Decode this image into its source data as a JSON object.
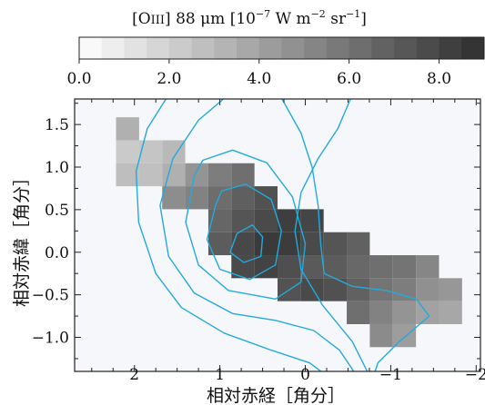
{
  "chart_data": {
    "type": "heatmap",
    "colorbar": {
      "title": "[OIII] 88 μm [10^-7 W m^-2 sr^-1]",
      "title_parts": {
        "prefix": "[O",
        "ion": "III",
        "line": "] 88 μm [10",
        "exp1": "−7",
        "units": " W m",
        "exp2": "−2",
        "units2": " sr",
        "exp3": "−1",
        "close": "]"
      },
      "range": [
        0.0,
        9.0
      ],
      "n_bins": 18,
      "ticks": [
        0.0,
        2.0,
        4.0,
        6.0,
        8.0
      ],
      "tick_labels": [
        "0.0",
        "2.0",
        "4.0",
        "6.0",
        "8.0"
      ],
      "color_low": "#ffffff",
      "color_high": "#2e2e2e"
    },
    "xlabel": "相対赤経［角分］",
    "ylabel": "相対赤緯［角分］",
    "xlim": [
      2.7,
      -2.05
    ],
    "ylim": [
      -1.4,
      1.8
    ],
    "x_ticks": [
      2,
      1,
      0,
      -1,
      -2
    ],
    "x_tick_labels": [
      "2",
      "1",
      "0",
      "−1",
      "−2"
    ],
    "y_ticks": [
      1.5,
      1.0,
      0.5,
      0.0,
      -0.5,
      -1.0
    ],
    "y_tick_labels": [
      "1.5",
      "1.0",
      "0.5",
      "0.0",
      "−0.5",
      "−1.0"
    ],
    "pixel_size_arcmin": 0.27,
    "pixels": [
      {
        "x": 2.08,
        "y": 1.45,
        "v": 3.4
      },
      {
        "x": 2.08,
        "y": 1.18,
        "v": 2.3
      },
      {
        "x": 1.81,
        "y": 1.18,
        "v": 2.5
      },
      {
        "x": 2.08,
        "y": 0.91,
        "v": 2.8
      },
      {
        "x": 1.81,
        "y": 0.91,
        "v": 2.7
      },
      {
        "x": 1.54,
        "y": 0.91,
        "v": 3.4
      },
      {
        "x": 1.27,
        "y": 0.91,
        "v": 4.6
      },
      {
        "x": 1.54,
        "y": 1.18,
        "v": 3.0
      },
      {
        "x": 1.54,
        "y": 0.64,
        "v": 4.9
      },
      {
        "x": 1.27,
        "y": 0.64,
        "v": 5.4
      },
      {
        "x": 1.0,
        "y": 0.91,
        "v": 5.6
      },
      {
        "x": 1.0,
        "y": 0.64,
        "v": 6.3
      },
      {
        "x": 0.73,
        "y": 0.91,
        "v": 6.2
      },
      {
        "x": 0.73,
        "y": 0.64,
        "v": 6.9
      },
      {
        "x": 1.0,
        "y": 0.37,
        "v": 6.6
      },
      {
        "x": 0.73,
        "y": 0.37,
        "v": 7.3
      },
      {
        "x": 0.46,
        "y": 0.64,
        "v": 7.5
      },
      {
        "x": 0.46,
        "y": 0.37,
        "v": 7.8
      },
      {
        "x": 1.0,
        "y": 0.1,
        "v": 7.0
      },
      {
        "x": 0.73,
        "y": 0.1,
        "v": 7.9
      },
      {
        "x": 0.46,
        "y": 0.1,
        "v": 8.5
      },
      {
        "x": 0.19,
        "y": 0.37,
        "v": 8.3
      },
      {
        "x": 0.19,
        "y": 0.1,
        "v": 8.4
      },
      {
        "x": -0.08,
        "y": 0.37,
        "v": 8.0
      },
      {
        "x": -0.08,
        "y": 0.1,
        "v": 7.8
      },
      {
        "x": 0.73,
        "y": -0.17,
        "v": 7.8
      },
      {
        "x": 0.46,
        "y": -0.17,
        "v": 8.1
      },
      {
        "x": 0.19,
        "y": -0.17,
        "v": 7.6
      },
      {
        "x": -0.08,
        "y": -0.17,
        "v": 7.1
      },
      {
        "x": 0.19,
        "y": -0.44,
        "v": 7.4
      },
      {
        "x": -0.08,
        "y": -0.44,
        "v": 7.8
      },
      {
        "x": -0.35,
        "y": 0.1,
        "v": 7.3
      },
      {
        "x": -0.35,
        "y": -0.17,
        "v": 7.0
      },
      {
        "x": -0.35,
        "y": -0.44,
        "v": 7.5
      },
      {
        "x": -0.62,
        "y": 0.1,
        "v": 6.8
      },
      {
        "x": -0.62,
        "y": -0.17,
        "v": 6.5
      },
      {
        "x": -0.62,
        "y": -0.44,
        "v": 6.8
      },
      {
        "x": -0.89,
        "y": -0.17,
        "v": 6.2
      },
      {
        "x": -0.89,
        "y": -0.44,
        "v": 6.0
      },
      {
        "x": -0.62,
        "y": -0.71,
        "v": 6.2
      },
      {
        "x": -0.89,
        "y": -0.71,
        "v": 5.4
      },
      {
        "x": -1.16,
        "y": -0.17,
        "v": 6.0
      },
      {
        "x": -1.16,
        "y": -0.44,
        "v": 5.6
      },
      {
        "x": -1.16,
        "y": -0.71,
        "v": 4.6
      },
      {
        "x": -1.43,
        "y": -0.17,
        "v": 5.2
      },
      {
        "x": -1.43,
        "y": -0.44,
        "v": 4.8
      },
      {
        "x": -1.43,
        "y": -0.71,
        "v": 4.0
      },
      {
        "x": -1.7,
        "y": -0.44,
        "v": 4.5
      },
      {
        "x": -1.7,
        "y": -0.71,
        "v": 3.8
      },
      {
        "x": -0.89,
        "y": -0.98,
        "v": 5.0
      },
      {
        "x": -1.16,
        "y": -0.98,
        "v": 4.2
      }
    ],
    "contour_color": "#22aadd",
    "contours": [
      {
        "level": 1,
        "points": [
          [
            1.6,
            1.85
          ],
          [
            1.85,
            1.45
          ],
          [
            1.98,
            0.95
          ],
          [
            1.95,
            0.35
          ],
          [
            1.75,
            -0.25
          ],
          [
            1.45,
            -0.65
          ],
          [
            0.95,
            -0.95
          ],
          [
            0.4,
            -1.15
          ],
          [
            -0.05,
            -1.3
          ],
          [
            -0.25,
            -1.45
          ]
        ]
      },
      {
        "level": 2,
        "points": [
          [
            -0.75,
            -1.45
          ],
          [
            -0.55,
            -1.05
          ],
          [
            -0.2,
            -0.62
          ],
          [
            0.05,
            -0.2
          ],
          [
            0.12,
            0.25
          ],
          [
            0.05,
            0.7
          ],
          [
            -0.15,
            1.1
          ],
          [
            -0.38,
            1.45
          ],
          [
            -0.55,
            1.85
          ]
        ]
      },
      {
        "level": 3,
        "points": [
          [
            0.9,
            1.85
          ],
          [
            1.25,
            1.55
          ],
          [
            1.55,
            1.1
          ],
          [
            1.7,
            0.55
          ],
          [
            1.6,
            -0.05
          ],
          [
            1.3,
            -0.48
          ],
          [
            0.85,
            -0.72
          ],
          [
            0.35,
            -0.8
          ],
          [
            -0.1,
            -0.92
          ],
          [
            -0.4,
            -1.15
          ],
          [
            -0.6,
            -1.45
          ]
        ]
      },
      {
        "level": 4,
        "points": [
          [
            0.3,
            1.85
          ],
          [
            0.05,
            1.4
          ],
          [
            -0.08,
            1.0
          ],
          [
            -0.15,
            0.55
          ],
          [
            -0.18,
            0.1
          ],
          [
            -0.22,
            -0.25
          ],
          [
            -0.55,
            -0.4
          ],
          [
            -0.95,
            -0.45
          ],
          [
            -1.3,
            -0.55
          ],
          [
            -1.45,
            -0.75
          ],
          [
            -1.1,
            -1.05
          ],
          [
            -0.85,
            -1.3
          ],
          [
            -0.8,
            -1.45
          ]
        ]
      },
      {
        "level": 5,
        "points": [
          [
            1.3,
            0.9
          ],
          [
            1.4,
            0.35
          ],
          [
            1.25,
            -0.15
          ],
          [
            0.9,
            -0.45
          ],
          [
            0.35,
            -0.55
          ],
          [
            0.05,
            -0.35
          ],
          [
            0.0,
            0.1
          ],
          [
            0.15,
            0.65
          ],
          [
            0.45,
            1.05
          ],
          [
            0.85,
            1.2
          ],
          [
            1.2,
            1.08
          ],
          [
            1.3,
            0.9
          ]
        ]
      },
      {
        "level": 6,
        "points": [
          [
            1.05,
            0.55
          ],
          [
            1.15,
            0.15
          ],
          [
            1.0,
            -0.2
          ],
          [
            0.65,
            -0.32
          ],
          [
            0.35,
            -0.15
          ],
          [
            0.28,
            0.25
          ],
          [
            0.4,
            0.62
          ],
          [
            0.7,
            0.8
          ],
          [
            0.98,
            0.72
          ],
          [
            1.05,
            0.55
          ]
        ]
      },
      {
        "level": 7,
        "points": [
          [
            0.8,
            0.22
          ],
          [
            0.88,
            0.0
          ],
          [
            0.72,
            -0.12
          ],
          [
            0.52,
            -0.05
          ],
          [
            0.5,
            0.18
          ],
          [
            0.62,
            0.32
          ],
          [
            0.8,
            0.22
          ]
        ]
      }
    ]
  }
}
